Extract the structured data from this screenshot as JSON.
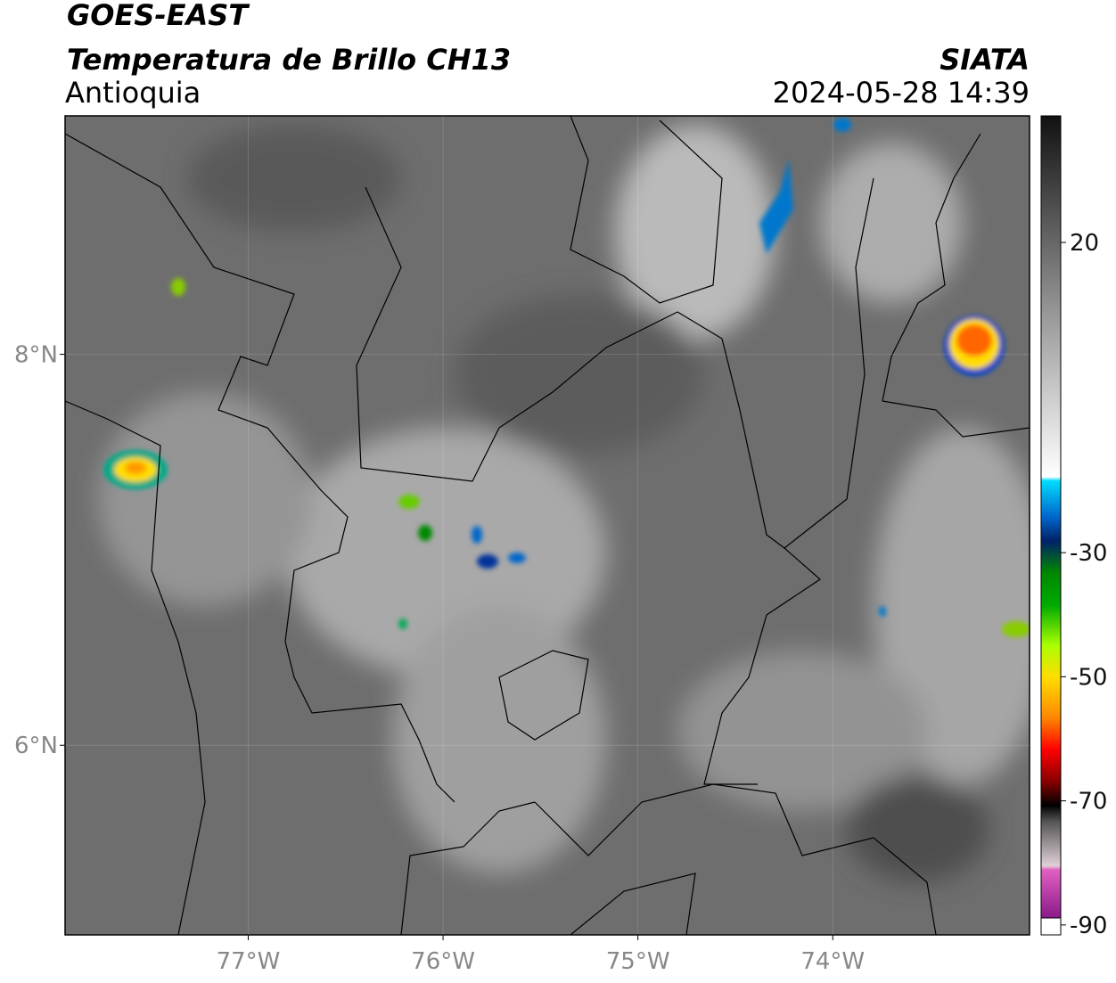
{
  "header": {
    "title": "GOES-EAST",
    "subtitle": "Temperatura de Brillo CH13",
    "region": "Antioquia",
    "source": "SIATA",
    "datetime": "2024-05-28 14:39"
  },
  "map": {
    "xlim": [
      -77.94,
      -72.99
    ],
    "ylim": [
      5.03,
      9.22
    ],
    "xticks": [
      {
        "value": -77,
        "label": "77°W"
      },
      {
        "value": -76,
        "label": "76°W"
      },
      {
        "value": -75,
        "label": "75°W"
      },
      {
        "value": -74,
        "label": "74°W"
      }
    ],
    "yticks": [
      {
        "value": 8,
        "label": "8°N"
      },
      {
        "value": 6,
        "label": "6°N"
      }
    ]
  },
  "colorbar": {
    "ylim": [
      -91.6,
      40.4
    ],
    "yticks": [
      20,
      -30,
      -50,
      -70,
      -90
    ]
  }
}
